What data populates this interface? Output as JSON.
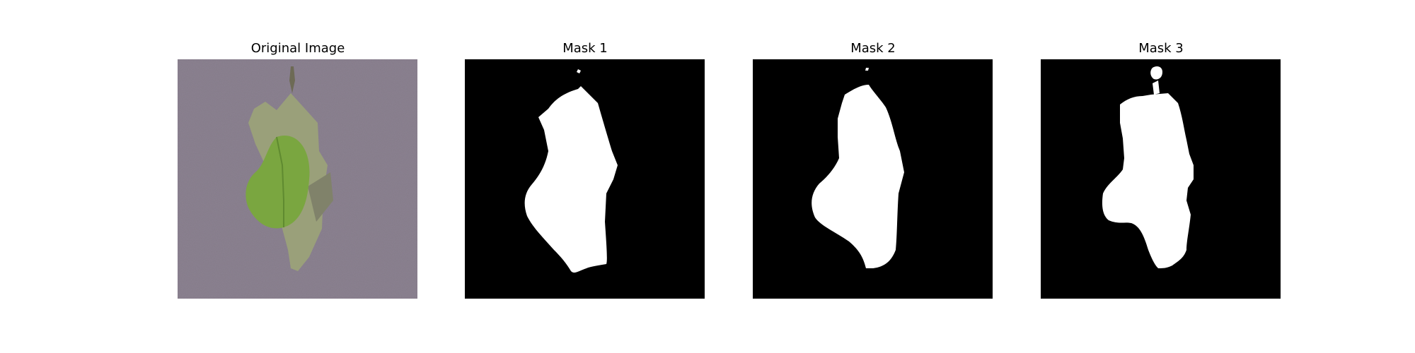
{
  "panels": [
    {
      "title": "Original Image",
      "kind": "photo"
    },
    {
      "title": "Mask 1",
      "kind": "mask"
    },
    {
      "title": "Mask 2",
      "kind": "mask"
    },
    {
      "title": "Mask 3",
      "kind": "mask"
    }
  ],
  "colors": {
    "background": "#ffffff",
    "mask_background": "#000000",
    "mask_foreground": "#ffffff",
    "photo_background": "#8b8190",
    "leaf_green": "#7aa640",
    "leaf_dry": "#9aa07a"
  }
}
